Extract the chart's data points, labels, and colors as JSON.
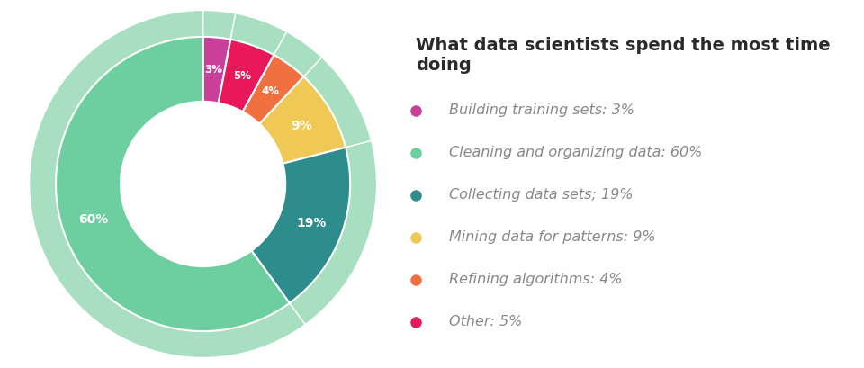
{
  "title": "What data scientists spend the most time doing",
  "slices": [
    {
      "label": "Building training sets: 3%",
      "value": 3,
      "color": "#c8409a",
      "pct_label": "3%"
    },
    {
      "label": "Other: 5%",
      "value": 5,
      "color": "#e8185a",
      "pct_label": "5%"
    },
    {
      "label": "Refining algorithms: 4%",
      "value": 4,
      "color": "#f07040",
      "pct_label": "4%"
    },
    {
      "label": "Mining data for patterns: 9%",
      "value": 9,
      "color": "#f0c855",
      "pct_label": "9%"
    },
    {
      "label": "Collecting data sets; 19%",
      "value": 19,
      "color": "#2d8c8c",
      "pct_label": "19%"
    },
    {
      "label": "Cleaning and organizing data: 60%",
      "value": 60,
      "color": "#6dcfa0",
      "pct_label": "60%"
    }
  ],
  "legend_dot_colors": [
    "#c8409a",
    "#6dcfa0",
    "#2d8c8c",
    "#f0c855",
    "#f07040",
    "#e8185a"
  ],
  "legend_labels": [
    "Building training sets: 3%",
    "Cleaning and organizing data: 60%",
    "Collecting data sets; 19%",
    "Mining data for patterns: 9%",
    "Refining algorithms: 4%",
    "Other: 5%"
  ],
  "background_color": "#ffffff",
  "shadow_color": "#a8dfc0",
  "title_fontsize": 14,
  "legend_fontsize": 11.5
}
